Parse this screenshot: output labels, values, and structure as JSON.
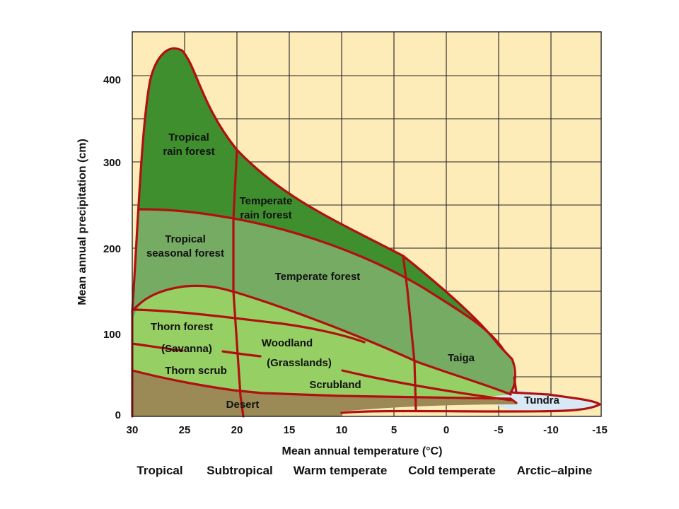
{
  "colors": {
    "background": "#fdebb8",
    "grid": "#222222",
    "boundary": "#b01010",
    "rain_forest": "#3f8f2e",
    "seasonal_forest": "#76ab63",
    "dry_zone": "#96cf63",
    "desert": "#9b8a55",
    "tundra": "#d8e8f4"
  },
  "axes": {
    "x_title": "Mean annual temperature (°C)",
    "y_title": "Mean annual precipitation (cm)",
    "x_ticks": [
      "30",
      "25",
      "20",
      "15",
      "10",
      "5",
      "0",
      "-5",
      "-10",
      "-15"
    ],
    "y_ticks": [
      "0",
      "100",
      "200",
      "300",
      "400"
    ]
  },
  "zones": [
    "Tropical",
    "Subtropical",
    "Warm temperate",
    "Cold temperate",
    "Arctic–alpine"
  ],
  "biomes": {
    "tropical_rain_forest": [
      "Tropical",
      "rain forest"
    ],
    "temperate_rain_forest": [
      "Temperate",
      "rain forest"
    ],
    "tropical_seasonal_forest": [
      "Tropical",
      "seasonal forest"
    ],
    "temperate_forest": "Temperate forest",
    "thorn_forest": "Thorn forest",
    "savanna": "(Savanna)",
    "woodland": "Woodland",
    "grasslands": "(Grasslands)",
    "thorn_scrub": "Thorn scrub",
    "scrubland": "Scrubland",
    "desert": "Desert",
    "taiga": "Taiga",
    "tundra": "Tundra"
  }
}
